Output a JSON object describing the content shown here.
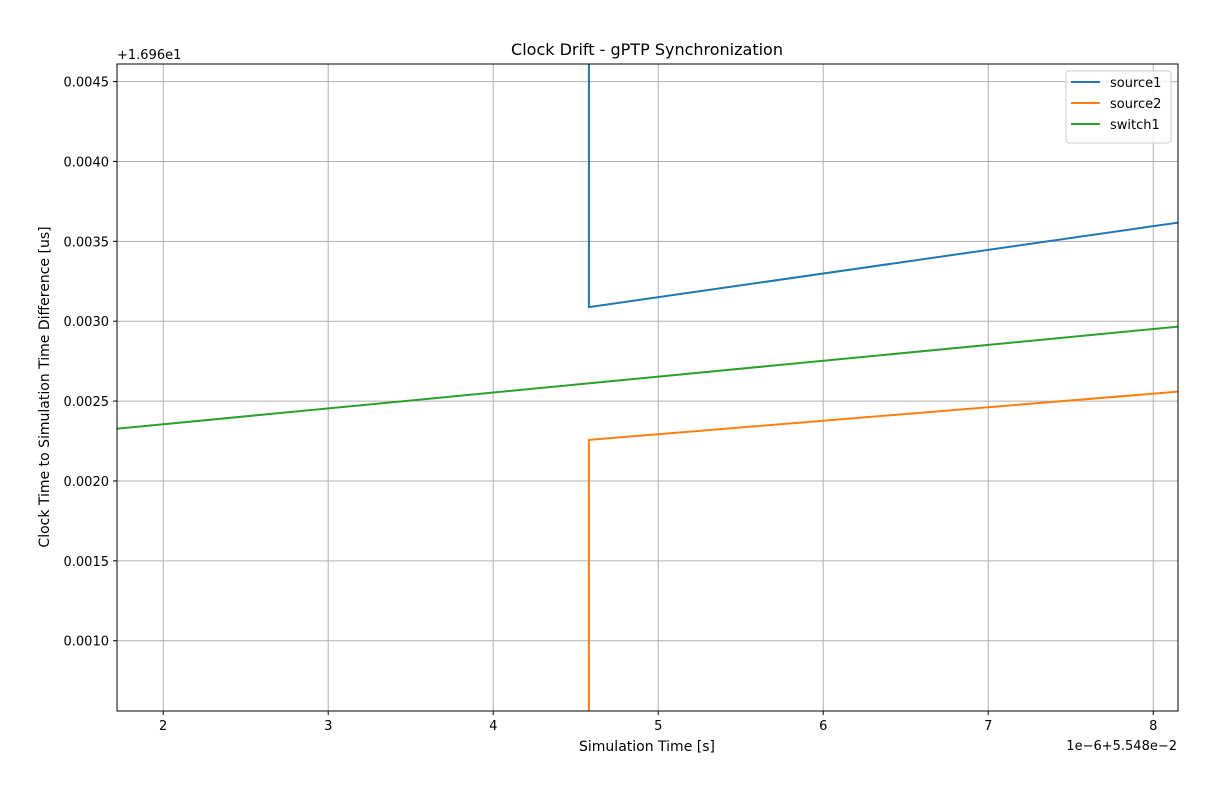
{
  "chart_data": {
    "type": "line",
    "title": "Clock Drift - gPTP Synchronization",
    "xlabel": "Simulation Time [s]",
    "ylabel": "Clock Time to Simulation Time Difference [us]",
    "x_offset_text": "1e−6+5.548e−2",
    "y_offset_text": "+1.696e1",
    "xlim": [
      1.72,
      8.15
    ],
    "ylim": [
      0.00056,
      0.00461
    ],
    "xticks": [
      2,
      3,
      4,
      5,
      6,
      7,
      8
    ],
    "xtick_labels": [
      "2",
      "3",
      "4",
      "5",
      "6",
      "7",
      "8"
    ],
    "yticks": [
      0.001,
      0.0015,
      0.002,
      0.0025,
      0.003,
      0.0035,
      0.004,
      0.0045
    ],
    "ytick_labels": [
      "0.0010",
      "0.0015",
      "0.0020",
      "0.0025",
      "0.0030",
      "0.0035",
      "0.0040",
      "0.0045"
    ],
    "grid": true,
    "legend_position": "top-right",
    "series": [
      {
        "name": "source1",
        "color": "#1f77b4",
        "points": [
          [
            4.58,
            0.0047
          ],
          [
            4.58,
            0.003088
          ],
          [
            8.15,
            0.003617
          ]
        ]
      },
      {
        "name": "source2",
        "color": "#ff7f0e",
        "points": [
          [
            4.58,
            0.0004
          ],
          [
            4.58,
            0.002257
          ],
          [
            8.15,
            0.002559
          ]
        ]
      },
      {
        "name": "switch1",
        "color": "#2ca02c",
        "points": [
          [
            1.72,
            0.002327
          ],
          [
            8.15,
            0.002966
          ]
        ]
      }
    ]
  }
}
